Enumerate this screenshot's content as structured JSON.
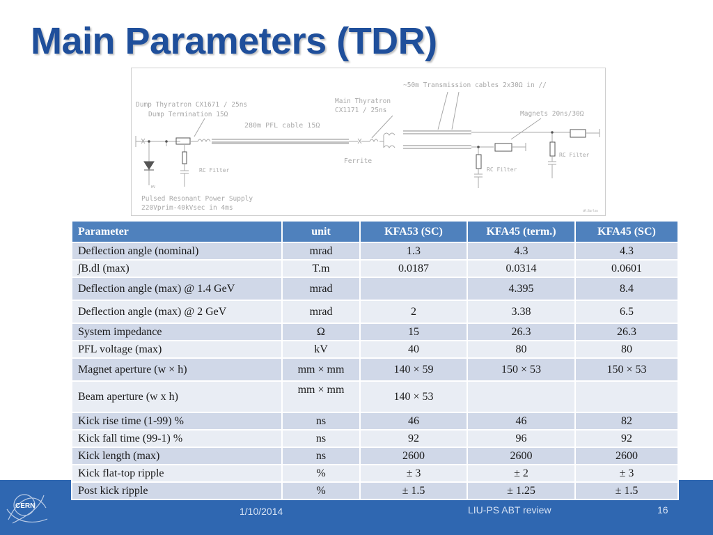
{
  "slide": {
    "title": "Main Parameters (TDR)",
    "footer_date": "1/10/2014",
    "footer_center": "LIU-PS ABT review",
    "footer_page": "16",
    "logo_text": "CERN",
    "accent_color": "#2f67b1",
    "title_color": "#1f4f9b"
  },
  "schematic": {
    "labels": {
      "dump_thyratron": "Dump Thyratron  CX1671 / 25ns",
      "dump_termination": "Dump Termination 15Ω",
      "pfl_cable": "280m PFL cable 15Ω",
      "main_thyratron_1": "Main Thyratron",
      "main_thyratron_2": "CX1171 / 25ns",
      "transmission": "~50m Transmission cables 2x30Ω in //",
      "magnets": "Magnets 20ns/30Ω",
      "ferrite": "Ferrite",
      "rc_filter_1": "RC Filter",
      "rc_filter_2": "RC Filter",
      "rc_filter_3": "RC Filter",
      "power_supply_1": "Pulsed Resonant Power Supply",
      "power_supply_2": "220Vprim-40kVsec in 4ms",
      "diode_tag": "HV",
      "credit": "©R.Barlow"
    }
  },
  "table": {
    "headers": [
      "Parameter",
      "unit",
      "KFA53  (SC)",
      "KFA45 (term.)",
      "KFA45 (SC)"
    ],
    "rows": [
      [
        "Deflection angle (nominal)",
        "mrad",
        "1.3",
        "4.3",
        "4.3"
      ],
      [
        "∫B.dl (max)",
        "T.m",
        "0.0187",
        "0.0314",
        "0.0601"
      ],
      [
        "Deflection angle (max) @ 1.4 GeV",
        "mrad",
        "",
        "4.395",
        "8.4"
      ],
      [
        "Deflection angle (max) @ 2 GeV",
        "mrad",
        "2",
        "3.38",
        "6.5"
      ],
      [
        "System impedance",
        "Ω",
        "15",
        "26.3",
        "26.3"
      ],
      [
        "PFL voltage (max)",
        "kV",
        "40",
        "80",
        "80"
      ],
      [
        "Magnet aperture (w × h)",
        "mm × mm",
        "140 × 59",
        "150 × 53",
        "150 × 53"
      ],
      [
        "Beam aperture (w x h)",
        "mm × mm",
        "140 × 53",
        "",
        ""
      ],
      [
        "Kick rise time (1-99) %",
        "ns",
        "46",
        "46",
        "82"
      ],
      [
        "Kick fall time (99-1) %",
        "ns",
        "92",
        "96",
        "92"
      ],
      [
        "Kick length (max)",
        "ns",
        "2600",
        "2600",
        "2600"
      ],
      [
        "Kick flat-top ripple",
        "%",
        "± 3",
        "± 2",
        "± 3"
      ],
      [
        "Post kick ripple",
        "%",
        "± 1.5",
        "± 1.25",
        "± 1.5"
      ]
    ]
  }
}
